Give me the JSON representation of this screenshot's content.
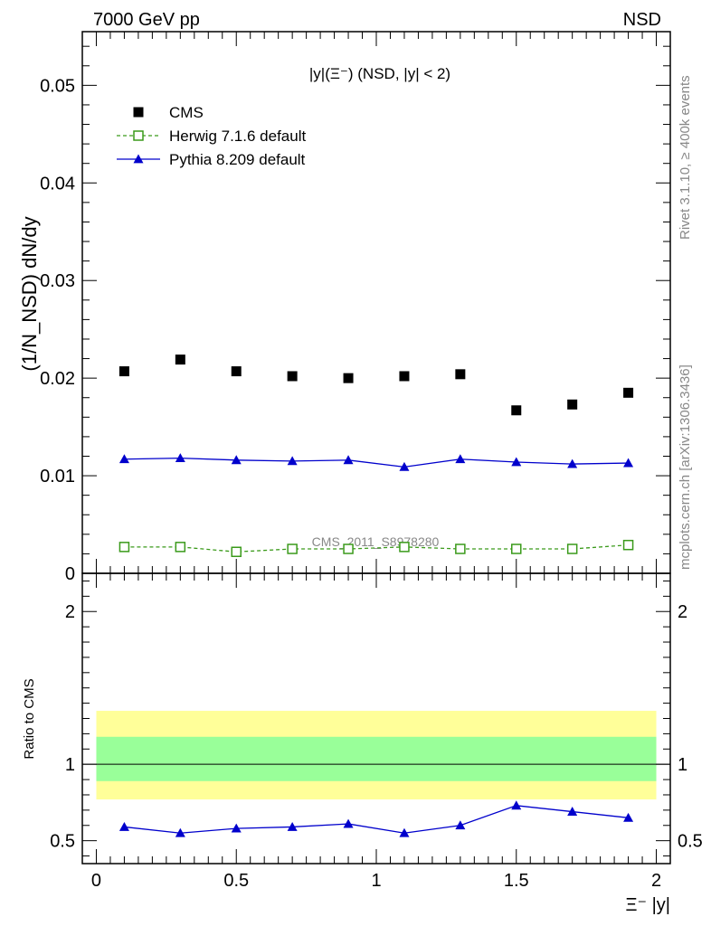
{
  "header": {
    "energy_label": "7000 GeV pp",
    "process_label": "NSD"
  },
  "side_labels": {
    "rivet": "Rivet 3.1.10, ≥ 400k events",
    "mcplots": "mcplots.cern.ch [arXiv:1306.3436]"
  },
  "watermark": "CMS_2011_S8978280",
  "colors": {
    "cms": "#000000",
    "herwig": "#3a9a1a",
    "pythia": "#0000cc",
    "band_inner": "#99ff99",
    "band_outer": "#ffff99"
  },
  "chart_data": [
    {
      "type": "scatter",
      "title": "|y|(Ξ⁻) (NSD, |y| < 2)",
      "ylabel": "(1/N_NSD) dN/dy",
      "xlim": [
        -0.05,
        2.05
      ],
      "ylim": [
        0,
        0.0555
      ],
      "yticks": [
        0,
        0.01,
        0.02,
        0.03,
        0.04,
        0.05
      ],
      "ytick_labels": [
        "0",
        "0.01",
        "0.02",
        "0.03",
        "0.04",
        "0.05"
      ],
      "legend_position": "top-left",
      "x": [
        0.1,
        0.3,
        0.5,
        0.7,
        0.9,
        1.1,
        1.3,
        1.5,
        1.7,
        1.9
      ],
      "series": [
        {
          "name": "CMS",
          "marker": "square",
          "values": [
            0.0207,
            0.0219,
            0.0207,
            0.0202,
            0.02,
            0.0202,
            0.0204,
            0.0167,
            0.0173,
            0.0185
          ]
        },
        {
          "name": "Herwig 7.1.6 default",
          "marker": "open-square",
          "line": "dashed",
          "values": [
            0.0027,
            0.0027,
            0.0022,
            0.0025,
            0.0025,
            0.0027,
            0.0025,
            0.0025,
            0.0025,
            0.0029
          ]
        },
        {
          "name": "Pythia 8.209 default",
          "marker": "triangle",
          "line": "solid",
          "values": [
            0.0117,
            0.0118,
            0.0116,
            0.0115,
            0.0116,
            0.0109,
            0.0117,
            0.0114,
            0.0112,
            0.0113
          ]
        }
      ]
    },
    {
      "type": "line",
      "ylabel": "Ratio to CMS",
      "xlabel": "Ξ⁻ |y|",
      "xlim": [
        -0.05,
        2.05
      ],
      "ylim": [
        0.35,
        2.25
      ],
      "xticks": [
        0,
        0.5,
        1,
        1.5,
        2
      ],
      "xtick_labels": [
        "0",
        "0.5",
        "1",
        "1.5",
        "2"
      ],
      "yticks": [
        0.5,
        1,
        2
      ],
      "ytick_labels": [
        "0.5",
        "1",
        "2"
      ],
      "reference_line": 1,
      "band_outer": [
        0.77,
        1.35
      ],
      "band_inner": [
        0.89,
        1.18
      ],
      "x": [
        0.1,
        0.3,
        0.5,
        0.7,
        0.9,
        1.1,
        1.3,
        1.5,
        1.7,
        1.9
      ],
      "series": [
        {
          "name": "Pythia 8.209 default",
          "values": [
            0.59,
            0.55,
            0.58,
            0.59,
            0.61,
            0.55,
            0.6,
            0.73,
            0.69,
            0.65
          ]
        }
      ]
    }
  ]
}
